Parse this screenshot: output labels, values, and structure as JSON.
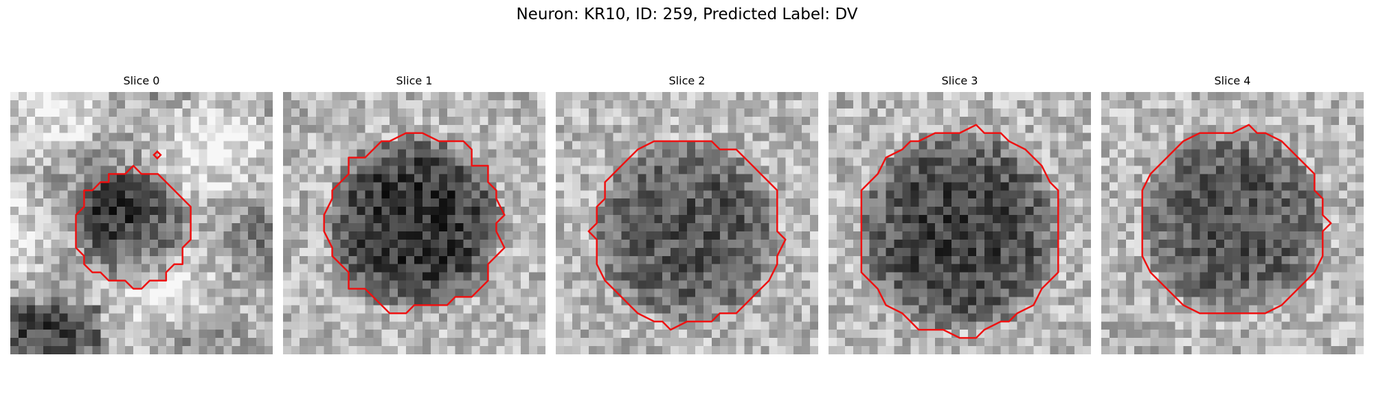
{
  "figure": {
    "title": "Neuron: KR10, ID: 259, Predicted Label: DV"
  },
  "colors": {
    "contour": "#ee1111",
    "background": "#ffffff"
  },
  "panels": [
    {
      "title": "Slice 0",
      "style": "slice-0"
    },
    {
      "title": "Slice 1",
      "style": "slice-1"
    },
    {
      "title": "Slice 2",
      "style": "slice-2"
    },
    {
      "title": "Slice 3",
      "style": "slice-3"
    },
    {
      "title": "Slice 4",
      "style": "slice-4"
    }
  ]
}
